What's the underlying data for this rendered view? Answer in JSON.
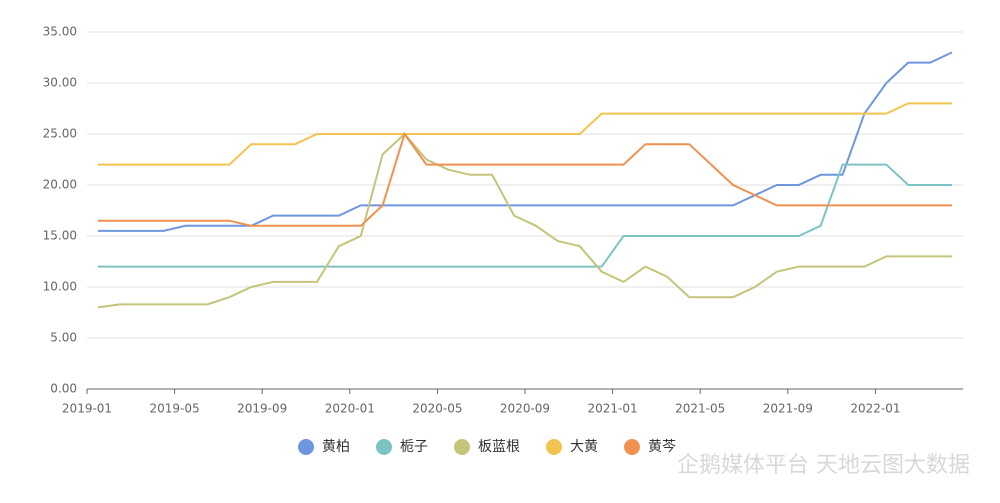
{
  "chart_data": {
    "type": "line",
    "categories": [
      "2019-01",
      null,
      null,
      null,
      "2019-05",
      null,
      null,
      null,
      "2019-09",
      null,
      null,
      null,
      "2020-01",
      null,
      null,
      null,
      "2020-05",
      null,
      null,
      null,
      "2020-09",
      null,
      null,
      null,
      "2021-01",
      null,
      null,
      null,
      "2021-05",
      null,
      null,
      null,
      "2021-09",
      null,
      null,
      null,
      "2022-01",
      null,
      null,
      null
    ],
    "series": [
      {
        "name": "黄柏",
        "color": "#6e96e0",
        "values": [
          15.5,
          15.5,
          15.5,
          15.5,
          16,
          16,
          16,
          16,
          17,
          17,
          17,
          17,
          18,
          18,
          18,
          18,
          18,
          18,
          18,
          18,
          18,
          18,
          18,
          18,
          18,
          18,
          18,
          18,
          18,
          18,
          19,
          20,
          20,
          21,
          21,
          27,
          30,
          32,
          32,
          33
        ]
      },
      {
        "name": "栀子",
        "color": "#7cc4c4",
        "values": [
          12,
          12,
          12,
          12,
          12,
          12,
          12,
          12,
          12,
          12,
          12,
          12,
          12,
          12,
          12,
          12,
          12,
          12,
          12,
          12,
          12,
          12,
          12,
          12,
          15,
          15,
          15,
          15,
          15,
          15,
          15,
          15,
          15,
          16,
          22,
          22,
          22,
          20,
          20,
          20
        ]
      },
      {
        "name": "板蓝根",
        "color": "#c4c47a",
        "values": [
          8,
          8.3,
          8.3,
          8.3,
          8.3,
          8.3,
          9,
          10,
          10.5,
          10.5,
          10.5,
          14,
          15,
          23,
          25,
          22.5,
          21.5,
          21,
          21,
          17,
          16,
          14.5,
          14,
          11.5,
          10.5,
          12,
          11,
          9,
          9,
          9,
          10,
          11.5,
          12,
          12,
          12,
          12,
          13,
          13,
          13,
          13
        ]
      },
      {
        "name": "大黄",
        "color": "#f2c44f",
        "values": [
          22,
          22,
          22,
          22,
          22,
          22,
          22,
          24,
          24,
          24,
          25,
          25,
          25,
          25,
          25,
          25,
          25,
          25,
          25,
          25,
          25,
          25,
          25,
          27,
          27,
          27,
          27,
          27,
          27,
          27,
          27,
          27,
          27,
          27,
          27,
          27,
          27,
          28,
          28,
          28
        ]
      },
      {
        "name": "黄芩",
        "color": "#f0914f",
        "values": [
          16.5,
          16.5,
          16.5,
          16.5,
          16.5,
          16.5,
          16.5,
          16,
          16,
          16,
          16,
          16,
          16,
          18,
          25,
          22,
          22,
          22,
          22,
          22,
          22,
          22,
          22,
          22,
          22,
          24,
          24,
          24,
          22,
          20,
          19,
          18,
          18,
          18,
          18,
          18,
          18,
          18,
          18,
          18
        ]
      }
    ],
    "ylim": [
      0,
      35
    ],
    "yticks": [
      {
        "value": 0,
        "label": "0.00"
      },
      {
        "value": 5,
        "label": "5.00"
      },
      {
        "value": 10,
        "label": "10.00"
      },
      {
        "value": 15,
        "label": "15.00"
      },
      {
        "value": 20,
        "label": "20.00"
      },
      {
        "value": 25,
        "label": "25.00"
      },
      {
        "value": 30,
        "label": "30.00"
      },
      {
        "value": 35,
        "label": "35.00"
      }
    ],
    "grid": true,
    "legend": "bottom",
    "watermark": "企鹅媒体平台 天地云图大数据"
  }
}
